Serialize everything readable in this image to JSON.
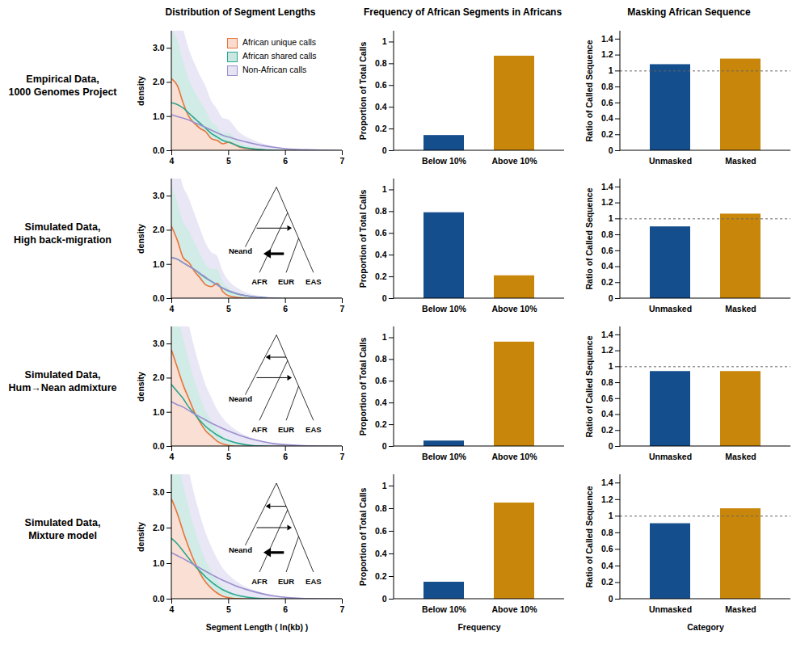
{
  "chart_data": [
    {
      "type": "area",
      "title": "Distribution of Segment Lengths",
      "row_label": [
        "Empirical Data,",
        "1000 Genomes Project"
      ],
      "ylabel": "density",
      "x": [
        4,
        4.1,
        4.2,
        4.3,
        4.4,
        4.5,
        4.6,
        4.7,
        4.8,
        4.9,
        5,
        5.2,
        5.4,
        5.6,
        5.8,
        6,
        6.5,
        7
      ],
      "series": [
        {
          "name": "African unique calls",
          "color": "#e8743b",
          "values": [
            2.1,
            1.9,
            1.4,
            1.0,
            0.8,
            0.65,
            0.55,
            0.35,
            0.3,
            0.2,
            0.25,
            0.1,
            0.05,
            0.02,
            0,
            0,
            0,
            0
          ]
        },
        {
          "name": "African shared calls",
          "color": "#2ca58d",
          "values": [
            1.4,
            1.35,
            1.25,
            1.1,
            0.95,
            0.8,
            0.65,
            0.5,
            0.4,
            0.3,
            0.25,
            0.12,
            0.06,
            0.03,
            0.01,
            0,
            0,
            0
          ]
        },
        {
          "name": "Non-African calls",
          "color": "#9b8fd0",
          "values": [
            1.05,
            1.0,
            0.95,
            0.9,
            0.82,
            0.75,
            0.68,
            0.6,
            0.52,
            0.45,
            0.4,
            0.3,
            0.22,
            0.15,
            0.1,
            0.06,
            0.02,
            0
          ]
        }
      ],
      "xlim": [
        4,
        7
      ],
      "xticks": [
        4,
        5,
        6,
        7
      ],
      "ylim": [
        0,
        3.5
      ],
      "yticks": [
        {
          "value": 0,
          "label": "0.0"
        },
        {
          "value": 1,
          "label": "1.0"
        },
        {
          "value": 2,
          "label": "2.0"
        },
        {
          "value": 3,
          "label": "3.0"
        }
      ],
      "legend": "top-right"
    },
    {
      "type": "bar",
      "title": "Frequency of African Segments in Africans",
      "ylabel": "Proportion of Total Calls",
      "categories": [
        "Below 10%",
        "Above 10%"
      ],
      "values": [
        0.14,
        0.87
      ],
      "colors": [
        "#154e8c",
        "#c8860a"
      ],
      "ylim": [
        0,
        1.1
      ],
      "yticks": [
        0,
        0.2,
        0.4,
        0.6,
        0.8,
        1
      ]
    },
    {
      "type": "bar",
      "title": "Masking African Sequence",
      "ylabel": "Ratio of Called Sequence",
      "categories": [
        "Unmasked",
        "Masked"
      ],
      "values": [
        1.08,
        1.15
      ],
      "colors": [
        "#154e8c",
        "#c8860a"
      ],
      "ylim": [
        0,
        1.5
      ],
      "yticks": [
        0,
        0.2,
        0.4,
        0.6,
        0.8,
        1,
        1.2,
        1.4
      ],
      "reference_line": 1
    },
    {
      "type": "area",
      "row_label": [
        "Simulated Data,",
        "High back-migration"
      ],
      "ylabel": "density",
      "annotations": [
        "Neand",
        "AFR",
        "EUR",
        "EAS"
      ],
      "x": [
        4,
        4.1,
        4.2,
        4.3,
        4.4,
        4.5,
        4.6,
        4.7,
        4.8,
        4.9,
        5,
        5.2,
        5.4,
        5.6,
        5.8,
        6,
        6.5,
        7
      ],
      "series": [
        {
          "color": "#e8743b",
          "values": [
            2.1,
            1.7,
            1.2,
            1.05,
            0.8,
            0.6,
            0.4,
            0.35,
            0.45,
            0.2,
            0.08,
            0.02,
            0,
            0,
            0,
            0,
            0,
            0
          ]
        },
        {
          "color": "#2ca58d",
          "values": [
            1.2,
            1.15,
            1.05,
            0.95,
            0.85,
            0.72,
            0.6,
            0.5,
            0.4,
            0.3,
            0.22,
            0.12,
            0.06,
            0.03,
            0.01,
            0,
            0,
            0
          ]
        },
        {
          "color": "#9b8fd0",
          "values": [
            1.2,
            1.15,
            1.05,
            0.95,
            0.85,
            0.73,
            0.62,
            0.5,
            0.4,
            0.3,
            0.23,
            0.12,
            0.06,
            0.03,
            0.01,
            0,
            0,
            0
          ]
        }
      ],
      "xlim": [
        4,
        7
      ],
      "xticks": [
        4,
        5,
        6,
        7
      ],
      "ylim": [
        0,
        3.5
      ],
      "yticks": [
        {
          "value": 0,
          "label": "0.0"
        },
        {
          "value": 1,
          "label": "1.0"
        },
        {
          "value": 2,
          "label": "2.0"
        },
        {
          "value": 3,
          "label": "3.0"
        }
      ]
    },
    {
      "type": "bar",
      "ylabel": "Proportion of Total Calls",
      "categories": [
        "Below 10%",
        "Above 10%"
      ],
      "values": [
        0.79,
        0.21
      ],
      "colors": [
        "#154e8c",
        "#c8860a"
      ],
      "ylim": [
        0,
        1.1
      ],
      "yticks": [
        0,
        0.2,
        0.4,
        0.6,
        0.8,
        1
      ]
    },
    {
      "type": "bar",
      "ylabel": "Ratio of Called Sequence",
      "categories": [
        "Unmasked",
        "Masked"
      ],
      "values": [
        0.9,
        1.06
      ],
      "colors": [
        "#154e8c",
        "#c8860a"
      ],
      "ylim": [
        0,
        1.5
      ],
      "yticks": [
        0,
        0.2,
        0.4,
        0.6,
        0.8,
        1,
        1.2,
        1.4
      ],
      "reference_line": 1
    },
    {
      "type": "area",
      "row_label": [
        "Simulated Data,",
        "Hum→Nean admixture"
      ],
      "ylabel": "density",
      "annotations": [
        "Neand",
        "AFR",
        "EUR",
        "EAS"
      ],
      "x": [
        4,
        4.1,
        4.2,
        4.3,
        4.4,
        4.5,
        4.6,
        4.7,
        4.8,
        4.9,
        5,
        5.2,
        5.4,
        5.6,
        5.8,
        6,
        6.5,
        7
      ],
      "series": [
        {
          "color": "#e8743b",
          "values": [
            2.8,
            2.3,
            1.8,
            1.4,
            1.0,
            0.7,
            0.45,
            0.3,
            0.15,
            0.07,
            0.03,
            0,
            0,
            0,
            0,
            0,
            0,
            0
          ]
        },
        {
          "color": "#2ca58d",
          "values": [
            1.8,
            1.6,
            1.4,
            1.15,
            0.95,
            0.75,
            0.58,
            0.45,
            0.33,
            0.24,
            0.17,
            0.08,
            0.03,
            0.01,
            0,
            0,
            0,
            0
          ]
        },
        {
          "color": "#9b8fd0",
          "values": [
            1.3,
            1.22,
            1.15,
            1.05,
            0.95,
            0.86,
            0.77,
            0.68,
            0.6,
            0.52,
            0.45,
            0.32,
            0.22,
            0.14,
            0.08,
            0.05,
            0.01,
            0
          ]
        }
      ],
      "xlim": [
        4,
        7
      ],
      "xticks": [
        4,
        5,
        6,
        7
      ],
      "ylim": [
        0,
        3.5
      ],
      "yticks": [
        {
          "value": 0,
          "label": "0.0"
        },
        {
          "value": 1,
          "label": "1.0"
        },
        {
          "value": 2,
          "label": "2.0"
        },
        {
          "value": 3,
          "label": "3.0"
        }
      ]
    },
    {
      "type": "bar",
      "ylabel": "Proportion of Total Calls",
      "categories": [
        "Below 10%",
        "Above 10%"
      ],
      "values": [
        0.05,
        0.96
      ],
      "colors": [
        "#154e8c",
        "#c8860a"
      ],
      "ylim": [
        0,
        1.1
      ],
      "yticks": [
        0,
        0.2,
        0.4,
        0.6,
        0.8,
        1
      ]
    },
    {
      "type": "bar",
      "ylabel": "Ratio of Called Sequence",
      "categories": [
        "Unmasked",
        "Masked"
      ],
      "values": [
        0.94,
        0.94
      ],
      "colors": [
        "#154e8c",
        "#c8860a"
      ],
      "ylim": [
        0,
        1.5
      ],
      "yticks": [
        0,
        0.2,
        0.4,
        0.6,
        0.8,
        1,
        1.2,
        1.4
      ],
      "reference_line": 1
    },
    {
      "type": "area",
      "row_label": [
        "Simulated Data,",
        "Mixture model"
      ],
      "ylabel": "density",
      "xlabel": "Segment Length ( ln(kb) )",
      "annotations": [
        "Neand",
        "AFR",
        "EUR",
        "EAS"
      ],
      "x": [
        4,
        4.1,
        4.2,
        4.3,
        4.4,
        4.5,
        4.6,
        4.7,
        4.8,
        4.9,
        5,
        5.2,
        5.4,
        5.6,
        5.8,
        6,
        6.5,
        7
      ],
      "series": [
        {
          "color": "#e8743b",
          "values": [
            2.8,
            2.4,
            1.9,
            1.45,
            1.05,
            0.72,
            0.47,
            0.3,
            0.17,
            0.08,
            0.04,
            0.01,
            0,
            0,
            0,
            0,
            0,
            0
          ]
        },
        {
          "color": "#2ca58d",
          "values": [
            1.7,
            1.55,
            1.35,
            1.15,
            0.95,
            0.78,
            0.62,
            0.48,
            0.36,
            0.26,
            0.19,
            0.09,
            0.04,
            0.015,
            0,
            0,
            0,
            0
          ]
        },
        {
          "color": "#9b8fd0",
          "values": [
            1.3,
            1.22,
            1.14,
            1.05,
            0.96,
            0.87,
            0.78,
            0.69,
            0.61,
            0.53,
            0.46,
            0.33,
            0.23,
            0.15,
            0.09,
            0.05,
            0.01,
            0
          ]
        }
      ],
      "xlim": [
        4,
        7
      ],
      "xticks": [
        4,
        5,
        6,
        7
      ],
      "ylim": [
        0,
        3.5
      ],
      "yticks": [
        {
          "value": 0,
          "label": "0.0"
        },
        {
          "value": 1,
          "label": "1.0"
        },
        {
          "value": 2,
          "label": "2.0"
        },
        {
          "value": 3,
          "label": "3.0"
        }
      ]
    },
    {
      "type": "bar",
      "ylabel": "Proportion of Total Calls",
      "xlabel": "Frequency",
      "categories": [
        "Below 10%",
        "Above 10%"
      ],
      "values": [
        0.15,
        0.85
      ],
      "colors": [
        "#154e8c",
        "#c8860a"
      ],
      "ylim": [
        0,
        1.1
      ],
      "yticks": [
        0,
        0.2,
        0.4,
        0.6,
        0.8,
        1
      ]
    },
    {
      "type": "bar",
      "ylabel": "Ratio of Called Sequence",
      "xlabel": "Category",
      "categories": [
        "Unmasked",
        "Masked"
      ],
      "values": [
        0.91,
        1.09
      ],
      "colors": [
        "#154e8c",
        "#c8860a"
      ],
      "ylim": [
        0,
        1.5
      ],
      "yticks": [
        0,
        0.2,
        0.4,
        0.6,
        0.8,
        1,
        1.2,
        1.4
      ],
      "reference_line": 1
    }
  ]
}
